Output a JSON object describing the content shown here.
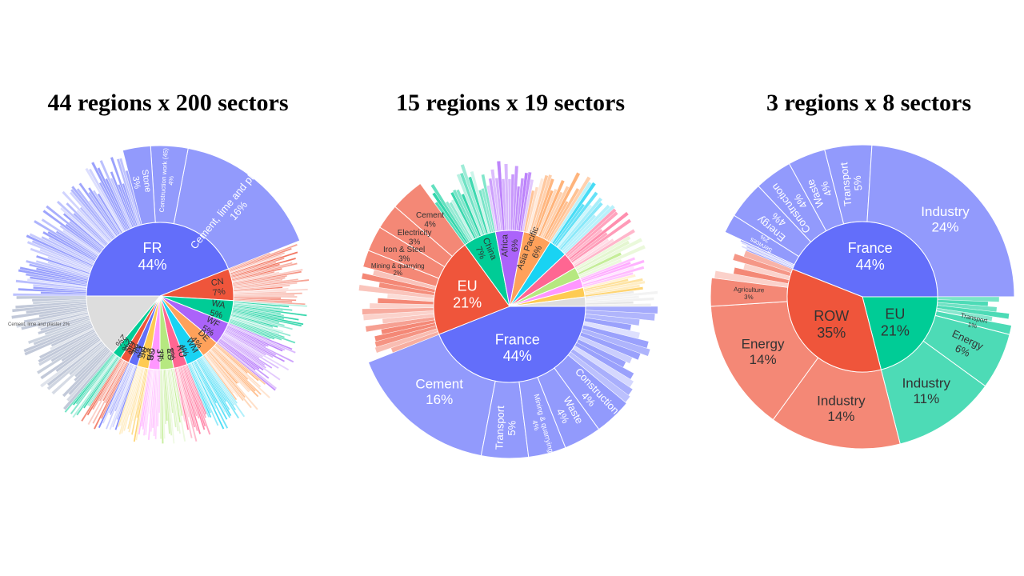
{
  "chart_data": [
    {
      "type": "sunburst",
      "title": "44 regions x 200 sectors",
      "inner": [
        {
          "label": "FR",
          "pct": "44%",
          "value": 44,
          "color": "#636efa"
        },
        {
          "label": "CN",
          "pct": "7%",
          "value": 7,
          "color": "#ef553b"
        },
        {
          "label": "WA",
          "pct": "5%",
          "value": 5,
          "color": "#00cc96"
        },
        {
          "label": "WF",
          "pct": "5%",
          "value": 5,
          "color": "#ab63fa"
        },
        {
          "label": "DE",
          "pct": "4%",
          "value": 4,
          "color": "#ffa15a"
        },
        {
          "label": "WM",
          "pct": "4%",
          "value": 4,
          "color": "#19d3f3"
        },
        {
          "label": "RU",
          "pct": "3%",
          "value": 3,
          "color": "#ff6692"
        },
        {
          "label": "ES",
          "pct": "3%",
          "value": 3,
          "color": "#b6e880"
        },
        {
          "label": "IT",
          "pct": "2%",
          "value": 2.5,
          "color": "#ff97ff"
        },
        {
          "label": "GB",
          "pct": "2%",
          "value": 2.5,
          "color": "#fecb52"
        },
        {
          "label": "BE",
          "pct": "2%",
          "value": 2,
          "color": "#636efa"
        },
        {
          "label": "NL",
          "pct": "2%",
          "value": 2,
          "color": "#ef553b"
        },
        {
          "label": "US",
          "pct": "2%",
          "value": 2,
          "color": "#00cc96"
        },
        {
          "label": "",
          "pct": "",
          "value": 14,
          "color": "#dddddd"
        }
      ],
      "outer_named": [
        {
          "label": "Cement, lime and plaster",
          "pct": "16%",
          "value": 16,
          "parent": "FR"
        },
        {
          "label": "Construction work (45)",
          "pct": "4%",
          "value": 4,
          "parent": "FR"
        },
        {
          "label": "Stone",
          "pct": "3%",
          "value": 3,
          "parent": "FR"
        }
      ],
      "outer_small": [
        {
          "label": "Cement, lime and plaster",
          "pct": "2%",
          "parent": "CN"
        }
      ]
    },
    {
      "type": "sunburst",
      "title": "15 regions x 19 sectors",
      "inner": [
        {
          "label": "France",
          "pct": "44%",
          "value": 44,
          "color": "#636efa"
        },
        {
          "label": "EU",
          "pct": "21%",
          "value": 21,
          "color": "#ef553b"
        },
        {
          "label": "China",
          "pct": "7%",
          "value": 7,
          "color": "#00cc96"
        },
        {
          "label": "Africa",
          "pct": "6%",
          "value": 6,
          "color": "#ab63fa"
        },
        {
          "label": "Asia Pacific",
          "pct": "6%",
          "value": 6,
          "color": "#ffa15a"
        },
        {
          "label": "",
          "pct": "",
          "value": 4,
          "color": "#19d3f3"
        },
        {
          "label": "",
          "pct": "",
          "value": 3.5,
          "color": "#ff6692"
        },
        {
          "label": "",
          "pct": "",
          "value": 2.5,
          "color": "#b6e880"
        },
        {
          "label": "",
          "pct": "",
          "value": 2,
          "color": "#ff97ff"
        },
        {
          "label": "",
          "pct": "",
          "value": 2,
          "color": "#fecb52"
        },
        {
          "label": "",
          "pct": "",
          "value": 2,
          "color": "#dddddd"
        }
      ],
      "outer_named": [
        {
          "label": "Cement",
          "pct": "16%",
          "value": 16,
          "parent": "France"
        },
        {
          "label": "Transport",
          "pct": "5%",
          "value": 5,
          "parent": "France"
        },
        {
          "label": "Mining & quarrying",
          "pct": "4%",
          "value": 4,
          "parent": "France"
        },
        {
          "label": "Waste",
          "pct": "4%",
          "value": 4,
          "parent": "France"
        },
        {
          "label": "Construction",
          "pct": "4%",
          "value": 4,
          "parent": "France"
        },
        {
          "label": "Cement",
          "pct": "4%",
          "value": 4,
          "parent": "EU"
        },
        {
          "label": "Electricity",
          "pct": "3%",
          "value": 3,
          "parent": "EU"
        },
        {
          "label": "Iron & Steel",
          "pct": "3%",
          "value": 3,
          "parent": "EU"
        },
        {
          "label": "Mining & quarrying",
          "pct": "2%",
          "value": 2,
          "parent": "EU"
        }
      ]
    },
    {
      "type": "sunburst",
      "title": "3 regions x 8 sectors",
      "inner": [
        {
          "label": "France",
          "pct": "44%",
          "value": 44,
          "color": "#636efa"
        },
        {
          "label": "EU",
          "pct": "21%",
          "value": 21,
          "color": "#00cc96"
        },
        {
          "label": "ROW",
          "pct": "35%",
          "value": 35,
          "color": "#ef553b"
        }
      ],
      "outer_named": [
        {
          "label": "Industry",
          "pct": "24%",
          "value": 24,
          "parent": "France"
        },
        {
          "label": "Transport",
          "pct": "5%",
          "value": 5,
          "parent": "France"
        },
        {
          "label": "Waste",
          "pct": "4%",
          "value": 4,
          "parent": "France"
        },
        {
          "label": "Construction",
          "pct": "4%",
          "value": 4,
          "parent": "France"
        },
        {
          "label": "Energy",
          "pct": "4%",
          "value": 4,
          "parent": "France"
        },
        {
          "label": "Services",
          "pct": "2%",
          "value": 2,
          "parent": "France"
        },
        {
          "label": "Transport",
          "pct": "1%",
          "value": 1,
          "parent": "EU"
        },
        {
          "label": "Energy",
          "pct": "6%",
          "value": 6,
          "parent": "EU"
        },
        {
          "label": "Industry",
          "pct": "11%",
          "value": 11,
          "parent": "EU"
        },
        {
          "label": "Agriculture",
          "pct": "3%",
          "value": 3,
          "parent": "ROW"
        },
        {
          "label": "Energy",
          "pct": "14%",
          "value": 14,
          "parent": "ROW"
        },
        {
          "label": "Industry",
          "pct": "14%",
          "value": 14,
          "parent": "ROW"
        }
      ]
    }
  ]
}
